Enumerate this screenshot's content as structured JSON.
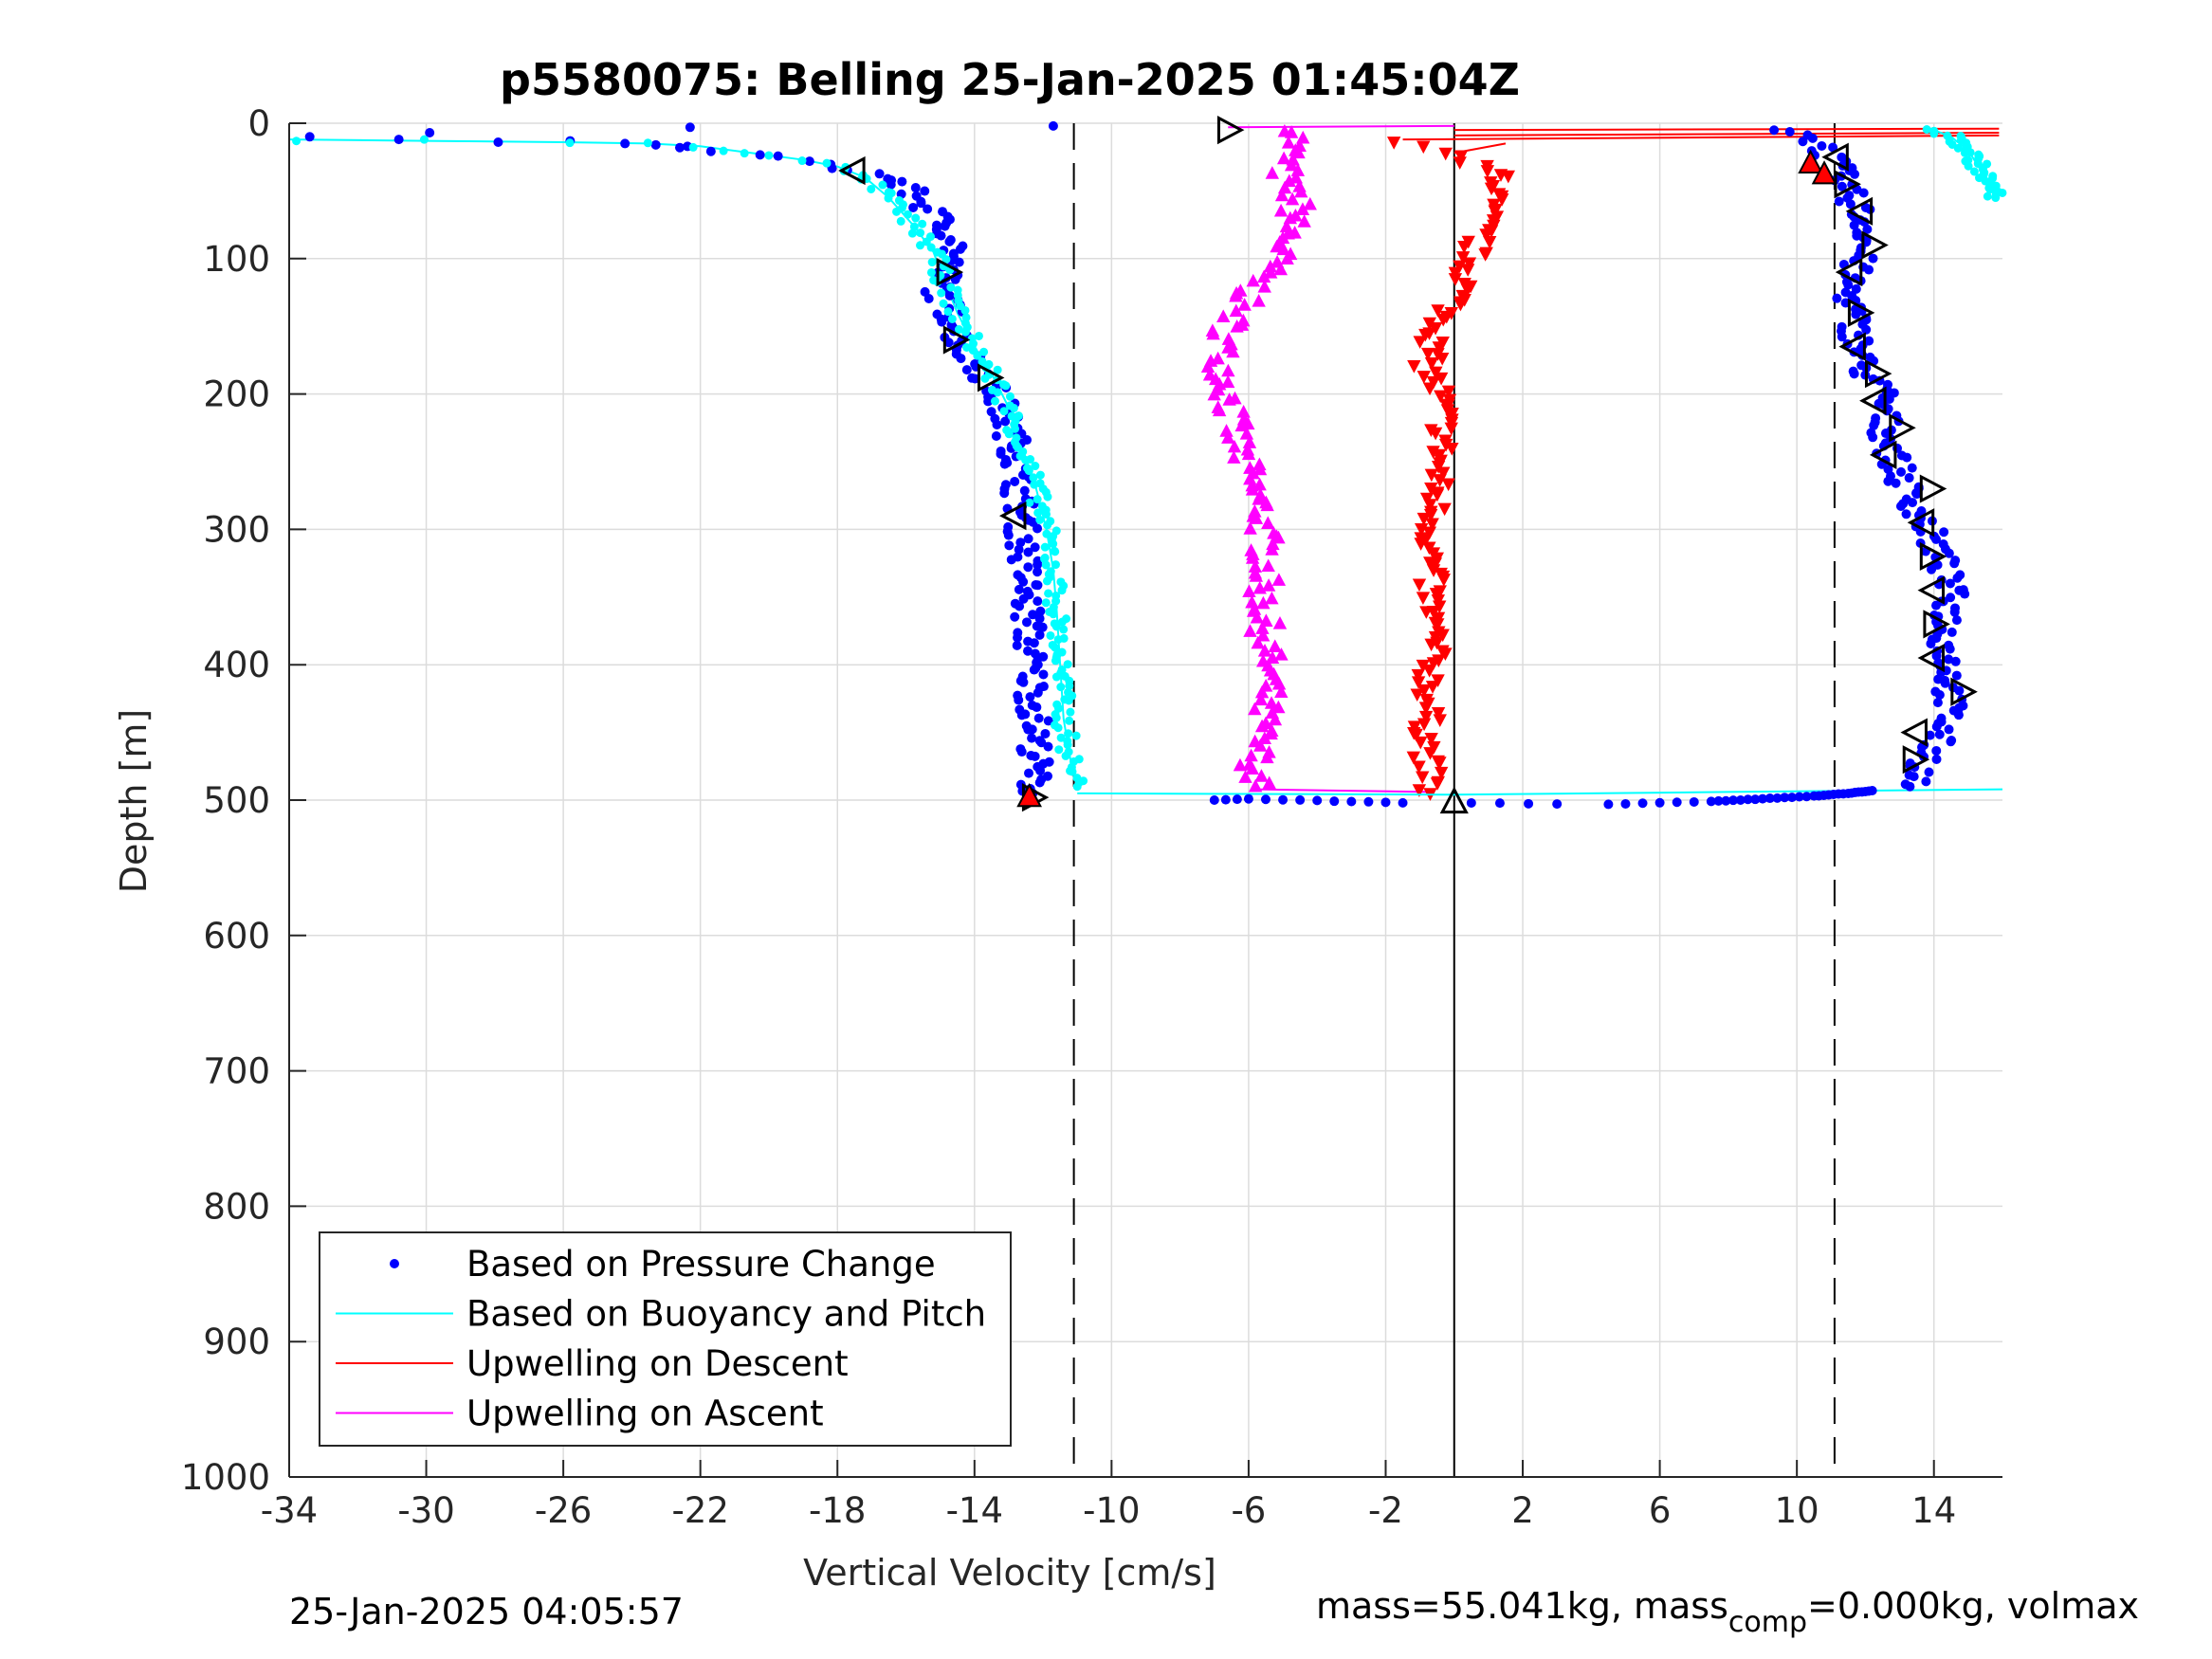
{
  "chart_data": {
    "type": "scatter",
    "title": "p5580075: Belling 25-Jan-2025 01:45:04Z",
    "xlabel": "Vertical Velocity [cm/s]",
    "ylabel": "Depth [m]",
    "xlim": [
      -34,
      16
    ],
    "ylim": [
      0,
      1000
    ],
    "y_reversed": true,
    "x_ticks": [
      -34,
      -30,
      -26,
      -22,
      -18,
      -14,
      -10,
      -6,
      -2,
      2,
      6,
      10,
      14
    ],
    "y_ticks": [
      0,
      100,
      200,
      300,
      400,
      500,
      600,
      700,
      800,
      900,
      1000
    ],
    "grid": true,
    "legend_location": "lower-left",
    "reference_lines": {
      "dashed": [
        -11.1,
        11.1
      ],
      "solid": [
        0
      ]
    },
    "series": [
      {
        "name": "Based on Pressure Change",
        "style": "dots",
        "color": "#0000ff",
        "descent": [
          [
            -33.4,
            10
          ],
          [
            -30.8,
            12
          ],
          [
            -29.9,
            7
          ],
          [
            -27.9,
            14
          ],
          [
            -25.8,
            13
          ],
          [
            -24.2,
            15
          ],
          [
            -23.3,
            16
          ],
          [
            -22.6,
            18
          ],
          [
            -21.5,
            21
          ],
          [
            -20.5,
            23
          ],
          [
            -19.2,
            27
          ],
          [
            -18.3,
            30
          ],
          [
            -17.4,
            35
          ],
          [
            -16.5,
            40
          ],
          [
            -15.9,
            50
          ],
          [
            -15.4,
            62
          ],
          [
            -14.9,
            75
          ],
          [
            -14.5,
            88
          ],
          [
            -14.8,
            105
          ],
          [
            -15.0,
            125
          ],
          [
            -14.6,
            145
          ],
          [
            -14.4,
            165
          ],
          [
            -13.7,
            185
          ],
          [
            -13.2,
            210
          ],
          [
            -12.8,
            240
          ],
          [
            -12.7,
            270
          ],
          [
            -12.6,
            300
          ],
          [
            -12.5,
            340
          ],
          [
            -12.4,
            380
          ],
          [
            -12.3,
            420
          ],
          [
            -12.2,
            460
          ],
          [
            -12.3,
            495
          ]
        ],
        "ascent": [
          [
            9.5,
            5
          ],
          [
            10.5,
            12
          ],
          [
            11.0,
            25
          ],
          [
            11.3,
            40
          ],
          [
            11.7,
            60
          ],
          [
            12.1,
            80
          ],
          [
            11.8,
            100
          ],
          [
            11.5,
            120
          ],
          [
            11.7,
            150
          ],
          [
            11.9,
            180
          ],
          [
            12.5,
            200
          ],
          [
            12.6,
            230
          ],
          [
            13.0,
            260
          ],
          [
            13.6,
            290
          ],
          [
            14.2,
            320
          ],
          [
            14.5,
            350
          ],
          [
            14.3,
            380
          ],
          [
            14.5,
            410
          ],
          [
            14.4,
            440
          ],
          [
            13.8,
            470
          ],
          [
            13.3,
            490
          ]
        ],
        "transition": [
          [
            -7.0,
            500
          ],
          [
            -6.0,
            499
          ],
          [
            -4.5,
            500
          ],
          [
            -3.0,
            501
          ],
          [
            -1.5,
            502
          ],
          [
            0.5,
            502
          ],
          [
            3.0,
            503
          ],
          [
            4.5,
            503
          ],
          [
            6.0,
            502
          ],
          [
            7.5,
            501
          ],
          [
            9.0,
            499
          ],
          [
            10.5,
            497
          ],
          [
            11.5,
            495
          ],
          [
            12.2,
            493
          ]
        ]
      },
      {
        "name": "Based on Buoyancy and Pitch",
        "style": "line",
        "color": "#00ffff",
        "descent": [
          [
            -34.0,
            12
          ],
          [
            -30.0,
            13
          ],
          [
            -26.0,
            14
          ],
          [
            -23.5,
            15
          ],
          [
            -22.0,
            17
          ],
          [
            -20.5,
            22
          ],
          [
            -19.0,
            27
          ],
          [
            -18.0,
            32
          ],
          [
            -17.2,
            40
          ],
          [
            -16.5,
            55
          ],
          [
            -15.8,
            75
          ],
          [
            -15.2,
            95
          ],
          [
            -14.9,
            115
          ],
          [
            -14.5,
            140
          ],
          [
            -14.0,
            165
          ],
          [
            -13.5,
            185
          ],
          [
            -13.0,
            210
          ],
          [
            -12.6,
            240
          ],
          [
            -12.2,
            270
          ],
          [
            -11.9,
            300
          ],
          [
            -11.7,
            330
          ],
          [
            -11.6,
            360
          ],
          [
            -11.5,
            400
          ],
          [
            -11.4,
            440
          ],
          [
            -11.2,
            470
          ],
          [
            -11.0,
            490
          ]
        ],
        "transition": [
          [
            -11.0,
            495
          ],
          [
            0.0,
            496
          ],
          [
            8.0,
            494
          ],
          [
            16.0,
            492
          ]
        ],
        "surface": [
          [
            14.0,
            5
          ],
          [
            14.5,
            10
          ],
          [
            15.0,
            20
          ],
          [
            15.5,
            40
          ],
          [
            15.8,
            55
          ]
        ]
      },
      {
        "name": "Upwelling on Descent",
        "style": "markers-down",
        "color": "#ff0000",
        "points": [
          [
            -1.5,
            15
          ],
          [
            0.0,
            25
          ],
          [
            1.5,
            40
          ],
          [
            1.0,
            60
          ],
          [
            0.8,
            80
          ],
          [
            0.5,
            100
          ],
          [
            0.3,
            120
          ],
          [
            -0.2,
            140
          ],
          [
            -0.6,
            160
          ],
          [
            -0.8,
            180
          ],
          [
            -0.4,
            200
          ],
          [
            -0.3,
            230
          ],
          [
            -0.5,
            260
          ],
          [
            -0.6,
            290
          ],
          [
            -0.7,
            320
          ],
          [
            -0.7,
            350
          ],
          [
            -0.6,
            380
          ],
          [
            -0.7,
            410
          ],
          [
            -0.8,
            440
          ],
          [
            -0.8,
            470
          ],
          [
            -0.7,
            495
          ]
        ]
      },
      {
        "name": "Upwelling on Ascent",
        "style": "markers-up",
        "color": "#ff00ff",
        "points": [
          [
            -4.5,
            5
          ],
          [
            -4.8,
            20
          ],
          [
            -5.0,
            40
          ],
          [
            -4.6,
            60
          ],
          [
            -4.8,
            80
          ],
          [
            -5.2,
            100
          ],
          [
            -5.8,
            120
          ],
          [
            -6.5,
            145
          ],
          [
            -6.8,
            170
          ],
          [
            -6.6,
            200
          ],
          [
            -6.4,
            230
          ],
          [
            -6.0,
            260
          ],
          [
            -5.6,
            290
          ],
          [
            -5.5,
            320
          ],
          [
            -5.6,
            350
          ],
          [
            -5.5,
            380
          ],
          [
            -5.4,
            410
          ],
          [
            -5.6,
            440
          ],
          [
            -5.8,
            470
          ],
          [
            -5.8,
            490
          ]
        ]
      }
    ],
    "triangle_markers": {
      "descent": [
        [
          -17.5,
          35
        ],
        [
          -14.8,
          110
        ],
        [
          -14.6,
          160
        ],
        [
          -13.6,
          188
        ],
        [
          -12.8,
          290
        ],
        [
          -12.3,
          498
        ]
      ],
      "ascent": [
        [
          11.2,
          25
        ],
        [
          11.4,
          45
        ],
        [
          11.9,
          65
        ],
        [
          12.2,
          90
        ],
        [
          11.6,
          110
        ],
        [
          11.8,
          140
        ],
        [
          11.7,
          165
        ],
        [
          12.3,
          185
        ],
        [
          12.3,
          205
        ],
        [
          13.0,
          225
        ],
        [
          12.6,
          245
        ],
        [
          13.9,
          270
        ],
        [
          13.7,
          295
        ],
        [
          13.9,
          320
        ],
        [
          14.0,
          345
        ],
        [
          14.0,
          370
        ],
        [
          14.0,
          395
        ],
        [
          14.8,
          420
        ],
        [
          13.5,
          450
        ],
        [
          13.4,
          470
        ]
      ],
      "upwelling": [
        [
          -6.6,
          5
        ],
        [
          0.0,
          502
        ]
      ],
      "red_filled": [
        [
          10.4,
          30
        ],
        [
          10.8,
          38
        ],
        [
          -12.4,
          498
        ]
      ]
    },
    "legend": [
      "Based on Pressure Change",
      "Based on Buoyancy and Pitch",
      "Upwelling on Descent",
      "Upwelling on Ascent"
    ]
  },
  "footer": {
    "timestamp": "25-Jan-2025 04:05:57",
    "mass_text": "mass=55.041kg, mass",
    "mass_sub": "comp",
    "mass_rest": "=0.000kg, volmax"
  },
  "colors": {
    "pressure": "#0000ff",
    "buoyancy": "#00ffff",
    "upwell_descent": "#ff0000",
    "upwell_ascent": "#ff00ff",
    "grid": "#dcdcdc"
  }
}
